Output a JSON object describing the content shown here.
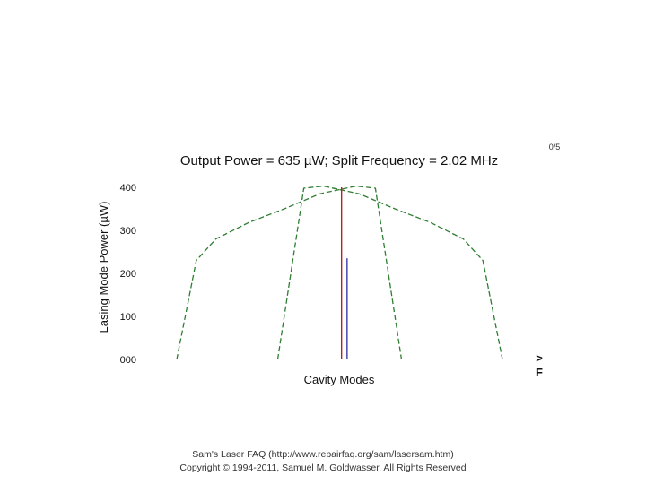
{
  "chart_data": {
    "type": "line",
    "title": "Output Power = 635 µW; Split Frequency = 2.02 MHz",
    "xlabel": "Cavity Modes",
    "ylabel": "Lasing Mode Power (µW)",
    "ylim": [
      0,
      400
    ],
    "yticks": [
      {
        "value": 0,
        "label": "000"
      },
      {
        "value": 100,
        "label": "100"
      },
      {
        "value": 200,
        "label": "200"
      },
      {
        "value": 300,
        "label": "300"
      },
      {
        "value": 400,
        "label": "400"
      }
    ],
    "xlim": [
      0,
      100
    ],
    "series": [
      {
        "style": "dashed",
        "color": "#2e7d32",
        "x": [
          0,
          6,
          12,
          22,
          33,
          44,
          55,
          61,
          69
        ],
        "y": [
          0,
          230,
          280,
          318,
          350,
          385,
          403,
          398,
          0
        ]
      },
      {
        "style": "dashed",
        "color": "#2e7d32",
        "x": [
          31,
          39,
          45,
          56,
          67,
          78,
          88,
          94,
          100
        ],
        "y": [
          0,
          398,
          403,
          385,
          350,
          318,
          280,
          230,
          0
        ]
      }
    ],
    "mode_lines": [
      {
        "x": 50.6,
        "y": 400,
        "color": "#b22222"
      },
      {
        "x": 52.3,
        "y": 235,
        "color": "#3a3aa8"
      }
    ],
    "corner_text": "0/5",
    "side_marks": [
      ">",
      "F"
    ]
  },
  "footer": {
    "line1": "Sam's Laser FAQ (http://www.repairfaq.org/sam/lasersam.htm)",
    "line2": "Copyright © 1994-2011, Samuel M. Goldwasser, All Rights Reserved"
  }
}
